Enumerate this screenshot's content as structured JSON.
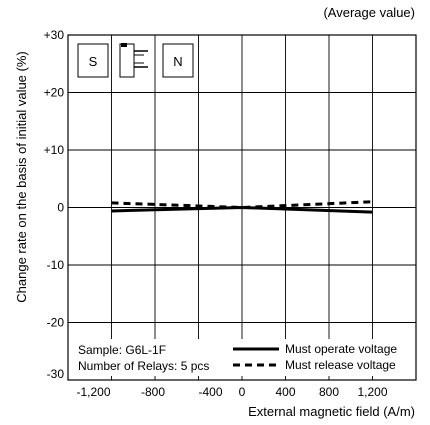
{
  "chart_data": {
    "type": "line",
    "title": "(Average value)",
    "xlabel": "External magnetic field (A/m)",
    "ylabel": "Change rate on the basis of initial value (%)",
    "x_tick_labels": [
      "-1,200",
      "-800",
      "-400",
      "0",
      "400",
      "800",
      "1,200"
    ],
    "y_tick_labels": [
      "+30",
      "+20",
      "+10",
      "0",
      "-10",
      "-20",
      "-30"
    ],
    "x_ticks": [
      -1200,
      -800,
      -400,
      0,
      400,
      800,
      1200
    ],
    "y_ticks": [
      30,
      20,
      10,
      0,
      -10,
      -20,
      -30
    ],
    "xlim": [
      -1600,
      1600
    ],
    "ylim": [
      -30,
      30
    ],
    "grid": true,
    "x": [
      -1200,
      0,
      1200
    ],
    "series": [
      {
        "name": "Must operate voltage",
        "style": "solid",
        "values": [
          -0.6,
          0.0,
          -0.8
        ]
      },
      {
        "name": "Must release voltage",
        "style": "dashed",
        "values": [
          0.8,
          0.0,
          1.0
        ]
      }
    ],
    "legend_position": "bottom-right",
    "annotations": {
      "sample": "Sample: G6L-1F",
      "relays": "Number of Relays: 5 pcs"
    },
    "inset_diagram": {
      "left_pole": "S",
      "right_pole": "N"
    }
  }
}
